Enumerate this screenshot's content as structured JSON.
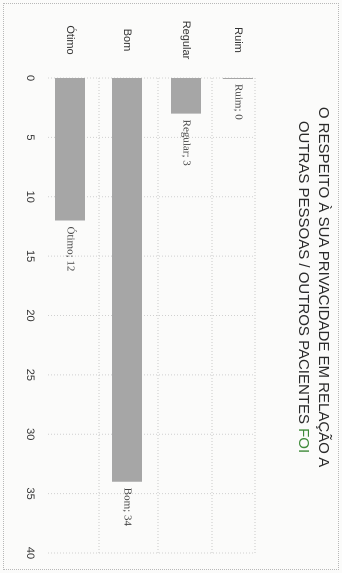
{
  "chart_data": {
    "type": "bar",
    "orientation": "horizontal",
    "title_lines": [
      "O RESPEITO À SUA PRIVACIDADE EM RELAÇÃO A",
      "OUTRAS PESSOAS / OUTROS PACIENTES "
    ],
    "title_suffix": "FOI",
    "categories": [
      "Ruim",
      "Regular",
      "Bom",
      "Ótimo"
    ],
    "values": [
      0,
      3,
      34,
      12
    ],
    "data_labels": [
      "Ruim; 0",
      "Regular; 3",
      "Bom; 34",
      "Ótimo; 12"
    ],
    "xlabel": "",
    "ylabel": "",
    "xlim": [
      0,
      40
    ],
    "ticks": [
      "0",
      "5",
      "10",
      "15",
      "20",
      "25",
      "30",
      "35",
      "40"
    ],
    "grid": true,
    "legend": "none",
    "bar_color": "#a6a6a6",
    "title_accent_color": "#3f8a3a"
  }
}
